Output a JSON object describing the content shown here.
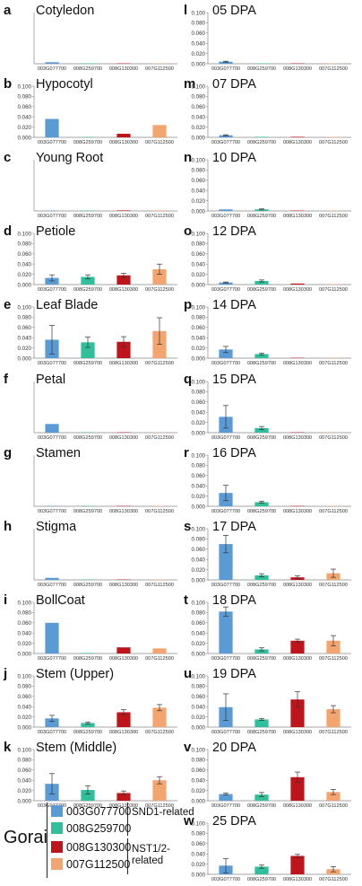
{
  "gene_ids": [
    "003G077700",
    "008G259700",
    "008G130300",
    "007G112500"
  ],
  "colors": {
    "003G077700": "#5b9bd5",
    "008G259700": "#2fbf9b",
    "008G130300": "#c0141b",
    "007G112500": "#f4a46e"
  },
  "yticks": [
    "0.100",
    "0.080",
    "0.060",
    "0.040",
    "0.020",
    "0.000"
  ],
  "legend": {
    "title": "Gorai",
    "items": [
      {
        "label": "003G077700",
        "color": "#5b9bd5"
      },
      {
        "label": "008G259700",
        "color": "#2fbf9b"
      },
      {
        "label": "008G130300",
        "color": "#c0141b"
      },
      {
        "label": "007G112500",
        "color": "#f4a46e"
      }
    ],
    "groups": [
      {
        "label": "SND1-related"
      },
      {
        "label": "NST1/2-related"
      }
    ]
  },
  "chart_data": [
    {
      "letter": "a",
      "title": "Cotyledon",
      "type": "bar",
      "categories": [
        "003G077700",
        "008G259700",
        "008G130300",
        "007G112500"
      ],
      "values": [
        0.003,
        0.0005,
        0.0005,
        0.0008
      ],
      "errors": [
        0,
        0,
        0,
        0
      ],
      "ylim": [
        0,
        0.1
      ],
      "show_ytick_labels": false
    },
    {
      "letter": "b",
      "title": "Hypocotyl",
      "type": "bar",
      "categories": [
        "003G077700",
        "008G259700",
        "008G130300",
        "007G112500"
      ],
      "values": [
        0.036,
        0.0005,
        0.007,
        0.024
      ],
      "errors": [
        0,
        0,
        0,
        0
      ],
      "ylim": [
        0,
        0.1
      ],
      "show_ytick_labels": true
    },
    {
      "letter": "c",
      "title": "Young Root",
      "type": "bar",
      "categories": [
        "003G077700",
        "008G259700",
        "008G130300",
        "007G112500"
      ],
      "values": [
        0.0008,
        0.0005,
        0.001,
        0.001
      ],
      "errors": [
        0,
        0,
        0,
        0
      ],
      "ylim": [
        0,
        0.1
      ],
      "show_ytick_labels": false
    },
    {
      "letter": "d",
      "title": "Petiole",
      "type": "bar",
      "categories": [
        "003G077700",
        "008G259700",
        "008G130300",
        "007G112500"
      ],
      "values": [
        0.013,
        0.015,
        0.018,
        0.03
      ],
      "errors": [
        0.006,
        0.004,
        0.004,
        0.01
      ],
      "ylim": [
        0,
        0.1
      ],
      "show_ytick_labels": true
    },
    {
      "letter": "e",
      "title": "Leaf Blade",
      "type": "bar",
      "categories": [
        "003G077700",
        "008G259700",
        "008G130300",
        "007G112500"
      ],
      "values": [
        0.036,
        0.031,
        0.032,
        0.053
      ],
      "errors": [
        0.028,
        0.01,
        0.01,
        0.026
      ],
      "ylim": [
        0,
        0.1
      ],
      "show_ytick_labels": true
    },
    {
      "letter": "f",
      "title": "Petal",
      "type": "bar",
      "categories": [
        "003G077700",
        "008G259700",
        "008G130300",
        "007G112500"
      ],
      "values": [
        0.017,
        0.0005,
        0.0005,
        0.0005
      ],
      "errors": [
        0,
        0,
        0,
        0
      ],
      "ylim": [
        0,
        0.1
      ],
      "show_ytick_labels": false
    },
    {
      "letter": "g",
      "title": "Stamen",
      "type": "bar",
      "categories": [
        "003G077700",
        "008G259700",
        "008G130300",
        "007G112500"
      ],
      "values": [
        0.0005,
        0.0005,
        0.0005,
        0.0005
      ],
      "errors": [
        0,
        0,
        0,
        0
      ],
      "ylim": [
        0,
        0.1
      ],
      "show_ytick_labels": false
    },
    {
      "letter": "h",
      "title": "Stigma",
      "type": "bar",
      "categories": [
        "003G077700",
        "008G259700",
        "008G130300",
        "007G112500"
      ],
      "values": [
        0.004,
        0.0005,
        0.0005,
        0.0008
      ],
      "errors": [
        0,
        0,
        0,
        0
      ],
      "ylim": [
        0,
        0.1
      ],
      "show_ytick_labels": false
    },
    {
      "letter": "i",
      "title": "BollCoat",
      "type": "bar",
      "categories": [
        "003G077700",
        "008G259700",
        "008G130300",
        "007G112500"
      ],
      "values": [
        0.06,
        0.001,
        0.012,
        0.01
      ],
      "errors": [
        0,
        0,
        0,
        0
      ],
      "ylim": [
        0,
        0.1
      ],
      "show_ytick_labels": true
    },
    {
      "letter": "j",
      "title": "Stem (Upper)",
      "type": "bar",
      "categories": [
        "003G077700",
        "008G259700",
        "008G130300",
        "007G112500"
      ],
      "values": [
        0.017,
        0.008,
        0.029,
        0.038
      ],
      "errors": [
        0.006,
        0.002,
        0.005,
        0.006
      ],
      "ylim": [
        0,
        0.1
      ],
      "show_ytick_labels": true
    },
    {
      "letter": "k",
      "title": "Stem (Middle)",
      "type": "bar",
      "categories": [
        "003G077700",
        "008G259700",
        "008G130300",
        "007G112500"
      ],
      "values": [
        0.033,
        0.021,
        0.015,
        0.04
      ],
      "errors": [
        0.02,
        0.008,
        0.004,
        0.007
      ],
      "ylim": [
        0,
        0.1
      ],
      "show_ytick_labels": true
    },
    {
      "letter": "l",
      "title": "05 DPA",
      "type": "bar",
      "categories": [
        "003G077700",
        "008G259700",
        "008G130300",
        "007G112500"
      ],
      "values": [
        0.004,
        0.0005,
        0.0005,
        0.0005
      ],
      "errors": [
        0.001,
        0,
        0,
        0
      ],
      "ylim": [
        0,
        0.1
      ],
      "show_ytick_labels": true
    },
    {
      "letter": "m",
      "title": "07 DPA",
      "type": "bar",
      "categories": [
        "003G077700",
        "008G259700",
        "008G130300",
        "007G112500"
      ],
      "values": [
        0.004,
        0.001,
        0.001,
        0.0005
      ],
      "errors": [
        0.001,
        0,
        0,
        0
      ],
      "ylim": [
        0,
        0.1
      ],
      "show_ytick_labels": true
    },
    {
      "letter": "n",
      "title": "10 DPA",
      "type": "bar",
      "categories": [
        "003G077700",
        "008G259700",
        "008G130300",
        "007G112500"
      ],
      "values": [
        0.003,
        0.003,
        0.0005,
        0.0005
      ],
      "errors": [
        0,
        0.001,
        0,
        0
      ],
      "ylim": [
        0,
        0.1
      ],
      "show_ytick_labels": true
    },
    {
      "letter": "o",
      "title": "12 DPA",
      "type": "bar",
      "categories": [
        "003G077700",
        "008G259700",
        "008G130300",
        "007G112500"
      ],
      "values": [
        0.004,
        0.007,
        0.002,
        0.0005
      ],
      "errors": [
        0.001,
        0.002,
        0,
        0
      ],
      "ylim": [
        0,
        0.1
      ],
      "show_ytick_labels": true
    },
    {
      "letter": "p",
      "title": "14 DPA",
      "type": "bar",
      "categories": [
        "003G077700",
        "008G259700",
        "008G130300",
        "007G112500"
      ],
      "values": [
        0.017,
        0.008,
        0.0005,
        0.0005
      ],
      "errors": [
        0.006,
        0.002,
        0,
        0
      ],
      "ylim": [
        0,
        0.1
      ],
      "show_ytick_labels": true
    },
    {
      "letter": "q",
      "title": "15 DPA",
      "type": "bar",
      "categories": [
        "003G077700",
        "008G259700",
        "008G130300",
        "007G112500"
      ],
      "values": [
        0.031,
        0.009,
        0.0005,
        0.0005
      ],
      "errors": [
        0.022,
        0.003,
        0,
        0
      ],
      "ylim": [
        0,
        0.1
      ],
      "show_ytick_labels": true
    },
    {
      "letter": "r",
      "title": "16 DPA",
      "type": "bar",
      "categories": [
        "003G077700",
        "008G259700",
        "008G130300",
        "007G112500"
      ],
      "values": [
        0.026,
        0.008,
        0.0005,
        0.0005
      ],
      "errors": [
        0.015,
        0.002,
        0,
        0
      ],
      "ylim": [
        0,
        0.1
      ],
      "show_ytick_labels": true
    },
    {
      "letter": "s",
      "title": "17 DPA",
      "type": "bar",
      "categories": [
        "003G077700",
        "008G259700",
        "008G130300",
        "007G112500"
      ],
      "values": [
        0.07,
        0.009,
        0.005,
        0.013
      ],
      "errors": [
        0.017,
        0.003,
        0.003,
        0.008
      ],
      "ylim": [
        0,
        0.1
      ],
      "show_ytick_labels": true
    },
    {
      "letter": "t",
      "title": "18 DPA",
      "type": "bar",
      "categories": [
        "003G077700",
        "008G259700",
        "008G130300",
        "007G112500"
      ],
      "values": [
        0.082,
        0.008,
        0.025,
        0.025
      ],
      "errors": [
        0.009,
        0.003,
        0.003,
        0.01
      ],
      "ylim": [
        0,
        0.1
      ],
      "show_ytick_labels": true
    },
    {
      "letter": "u",
      "title": "19 DPA",
      "type": "bar",
      "categories": [
        "003G077700",
        "008G259700",
        "008G130300",
        "007G112500"
      ],
      "values": [
        0.039,
        0.015,
        0.054,
        0.035
      ],
      "errors": [
        0.026,
        0.002,
        0.015,
        0.007
      ],
      "ylim": [
        0,
        0.1
      ],
      "show_ytick_labels": true
    },
    {
      "letter": "v",
      "title": "20 DPA",
      "type": "bar",
      "categories": [
        "003G077700",
        "008G259700",
        "008G130300",
        "007G112500"
      ],
      "values": [
        0.013,
        0.012,
        0.046,
        0.017
      ],
      "errors": [
        0.002,
        0.004,
        0.01,
        0.005
      ],
      "ylim": [
        0,
        0.1
      ],
      "show_ytick_labels": true
    },
    {
      "letter": "w",
      "title": "25 DPA",
      "type": "bar",
      "categories": [
        "003G077700",
        "008G259700",
        "008G130300",
        "007G112500"
      ],
      "values": [
        0.017,
        0.015,
        0.036,
        0.01
      ],
      "errors": [
        0.014,
        0.003,
        0.003,
        0.005
      ],
      "ylim": [
        0,
        0.1
      ],
      "show_ytick_labels": true
    }
  ]
}
